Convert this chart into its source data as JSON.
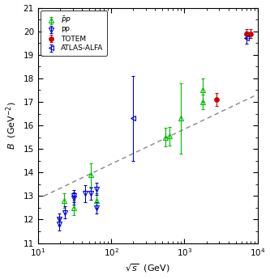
{
  "xlabel": "$\\sqrt{s}$  (GeV)",
  "ylabel": "$B$  (GeV$^{-2}$)",
  "xlim": [
    10,
    10000
  ],
  "ylim": [
    11,
    21
  ],
  "yticks": [
    11,
    12,
    13,
    14,
    15,
    16,
    17,
    18,
    19,
    20,
    21
  ],
  "ppbar_data": {
    "label": "$\\bar{P}P$",
    "color": "#00bb00",
    "marker": "^",
    "markerfacecolor": "none",
    "markersize": 4,
    "x": [
      23.0,
      30.7,
      52.6,
      62.5,
      546.0,
      630.0,
      900.0,
      1800.0,
      1800.0
    ],
    "y": [
      12.8,
      12.5,
      13.9,
      12.8,
      15.5,
      15.55,
      16.3,
      17.0,
      17.5
    ],
    "yerr_lo": [
      0.3,
      0.3,
      0.5,
      0.3,
      0.4,
      0.4,
      1.5,
      0.3,
      0.5
    ],
    "yerr_hi": [
      0.3,
      0.3,
      0.5,
      0.3,
      0.4,
      0.4,
      1.5,
      0.3,
      0.5
    ]
  },
  "pp_data": {
    "label": "PP",
    "color": "#0000dd",
    "marker": "v",
    "markerfacecolor": "none",
    "markersize": 4,
    "x": [
      19.5,
      19.5,
      23.5,
      30.5,
      30.5,
      44.6,
      52.8,
      62.5,
      62.5
    ],
    "y": [
      11.8,
      12.0,
      12.3,
      12.9,
      13.0,
      13.1,
      13.1,
      13.3,
      12.5
    ],
    "yerr_lo": [
      0.25,
      0.25,
      0.25,
      0.25,
      0.25,
      0.35,
      0.25,
      0.25,
      0.25
    ],
    "yerr_hi": [
      0.25,
      0.25,
      0.25,
      0.25,
      0.25,
      0.35,
      0.25,
      0.25,
      0.25
    ]
  },
  "totem_data": {
    "label": "TOTEM",
    "color": "#cc0000",
    "marker": "o",
    "markerfacecolor": "#cc0000",
    "markersize": 4,
    "x": [
      2760.0,
      7000.0,
      8000.0
    ],
    "y": [
      17.1,
      19.9,
      19.9
    ],
    "yerr_lo": [
      0.26,
      0.2,
      0.2
    ],
    "yerr_hi": [
      0.26,
      0.2,
      0.2
    ]
  },
  "atlas_data": {
    "label": "ATLAS-ALFA",
    "color": "#0000dd",
    "marker": "<",
    "markerfacecolor": "none",
    "markersize": 4,
    "x": [
      200.0,
      7000.0
    ],
    "y": [
      16.3,
      19.73
    ],
    "yerr_lo": [
      1.8,
      0.25
    ],
    "yerr_hi": [
      1.8,
      0.25
    ]
  },
  "fit_log_x0": 1.08,
  "fit_B0": 11.4,
  "fit_slope": 1.48,
  "fit_color": "#888888",
  "fit_linestyle": "--",
  "fit_xstart": 12,
  "fit_xend": 9000
}
